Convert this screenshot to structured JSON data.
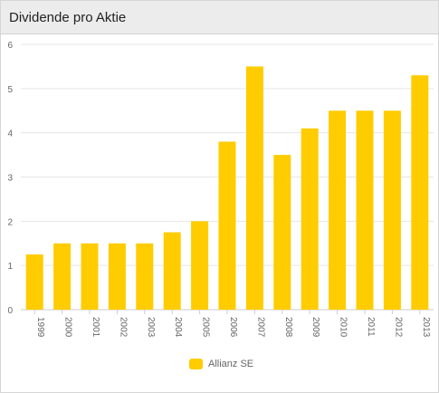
{
  "panel": {
    "title": "Dividende pro Aktie"
  },
  "colors": {
    "bar": "#ffcc00",
    "grid": "#e6e6e6",
    "axis": "#cccccc",
    "label": "#666666"
  },
  "chart_data": {
    "type": "bar",
    "title": "",
    "xlabel": "",
    "ylabel": "",
    "categories": [
      "1999",
      "2000",
      "2001",
      "2002",
      "2003",
      "2004",
      "2005",
      "2006",
      "2007",
      "2008",
      "2009",
      "2010",
      "2011",
      "2012",
      "2013"
    ],
    "series": [
      {
        "name": "Allianz SE",
        "values": [
          1.25,
          1.5,
          1.5,
          1.5,
          1.5,
          1.75,
          2.0,
          3.8,
          5.5,
          3.5,
          4.1,
          4.5,
          4.5,
          4.5,
          5.3
        ]
      }
    ],
    "ylim": [
      0,
      6
    ],
    "yticks": [
      "0",
      "1",
      "2",
      "3",
      "4",
      "5",
      "6"
    ],
    "grid": true,
    "legend": "bottom"
  }
}
